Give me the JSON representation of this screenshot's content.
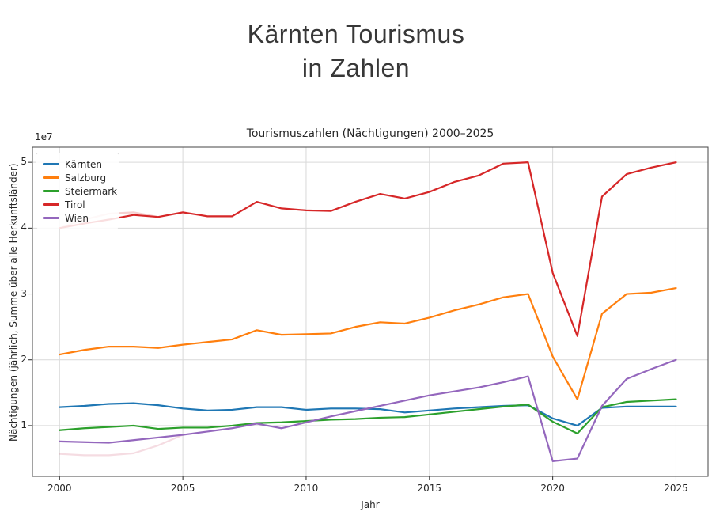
{
  "page": {
    "title_line1": "Kärnten Tourismus",
    "title_line2": "in Zahlen"
  },
  "chart_data": {
    "type": "line",
    "title": "Tourismuszahlen (Nächtigungen) 2000–2025",
    "xlabel": "Jahr",
    "ylabel": "Nächtigungen (jährlich, Summe über alle Herkunftsländer)",
    "y_offset_text": "1e7",
    "y_unit": "1e7",
    "grid": true,
    "legend_position": "upper left",
    "xlim": [
      1998.9,
      2026.3
    ],
    "ylim": [
      0.23,
      5.23
    ],
    "xticks": [
      2000,
      2005,
      2010,
      2015,
      2020,
      2025
    ],
    "yticks": [
      1,
      2,
      3,
      4,
      5
    ],
    "x": [
      2000,
      2001,
      2002,
      2003,
      2004,
      2005,
      2006,
      2007,
      2008,
      2009,
      2010,
      2011,
      2012,
      2013,
      2014,
      2015,
      2016,
      2017,
      2018,
      2019,
      2020,
      2021,
      2022,
      2023,
      2024,
      2025
    ],
    "series": [
      {
        "name": "Kärnten",
        "slug": "kaernten",
        "color": "#1f77b4",
        "values": [
          1.28,
          1.3,
          1.33,
          1.34,
          1.31,
          1.26,
          1.23,
          1.24,
          1.28,
          1.28,
          1.24,
          1.26,
          1.26,
          1.25,
          1.2,
          1.23,
          1.26,
          1.28,
          1.3,
          1.31,
          1.11,
          1.0,
          1.27,
          1.29,
          1.29,
          1.29
        ]
      },
      {
        "name": "Salzburg",
        "slug": "salzburg",
        "color": "#ff7f0e",
        "values": [
          2.08,
          2.15,
          2.2,
          2.2,
          2.18,
          2.23,
          2.27,
          2.31,
          2.45,
          2.38,
          2.39,
          2.4,
          2.5,
          2.57,
          2.55,
          2.64,
          2.75,
          2.84,
          2.95,
          3.0,
          2.05,
          1.4,
          2.7,
          3.0,
          3.02,
          3.09
        ]
      },
      {
        "name": "Steiermark",
        "slug": "steiermark",
        "color": "#2ca02c",
        "values": [
          0.93,
          0.96,
          0.98,
          1.0,
          0.95,
          0.97,
          0.97,
          1.0,
          1.04,
          1.05,
          1.07,
          1.09,
          1.1,
          1.12,
          1.13,
          1.17,
          1.21,
          1.25,
          1.29,
          1.32,
          1.06,
          0.88,
          1.28,
          1.36,
          1.38,
          1.4
        ]
      },
      {
        "name": "Tirol",
        "slug": "tirol",
        "color": "#d62728",
        "values": [
          4.0,
          4.07,
          4.13,
          4.2,
          4.17,
          4.24,
          4.18,
          4.18,
          4.4,
          4.3,
          4.27,
          4.26,
          4.4,
          4.52,
          4.45,
          4.55,
          4.7,
          4.8,
          4.98,
          5.0,
          3.32,
          2.36,
          4.48,
          4.82,
          4.92,
          5.0
        ]
      },
      {
        "name": "Wien",
        "slug": "wien",
        "color": "#9467bd",
        "values": [
          0.76,
          0.75,
          0.74,
          0.78,
          0.82,
          0.86,
          0.91,
          0.96,
          1.03,
          0.96,
          1.05,
          1.14,
          1.22,
          1.3,
          1.38,
          1.46,
          1.52,
          1.58,
          1.66,
          1.75,
          0.46,
          0.5,
          1.3,
          1.71,
          1.86,
          2.0
        ]
      }
    ],
    "ghost_segments": [
      {
        "name": "tirol-ghost",
        "color": "rgba(214,39,40,0.22)",
        "x": [
          2000,
          2001,
          2002,
          2003,
          2004
        ],
        "values": [
          4.0,
          4.13,
          4.22,
          4.24,
          4.17
        ]
      },
      {
        "name": "wien-ghost",
        "color": "rgba(205,80,110,0.20)",
        "x": [
          2000,
          2001,
          2002,
          2003,
          2004,
          2005
        ],
        "values": [
          0.57,
          0.55,
          0.55,
          0.58,
          0.7,
          0.86
        ]
      }
    ],
    "colors": {
      "grid": "#d9d9d9",
      "spine": "#454545",
      "tick": "#262626",
      "text": "#262626"
    }
  }
}
